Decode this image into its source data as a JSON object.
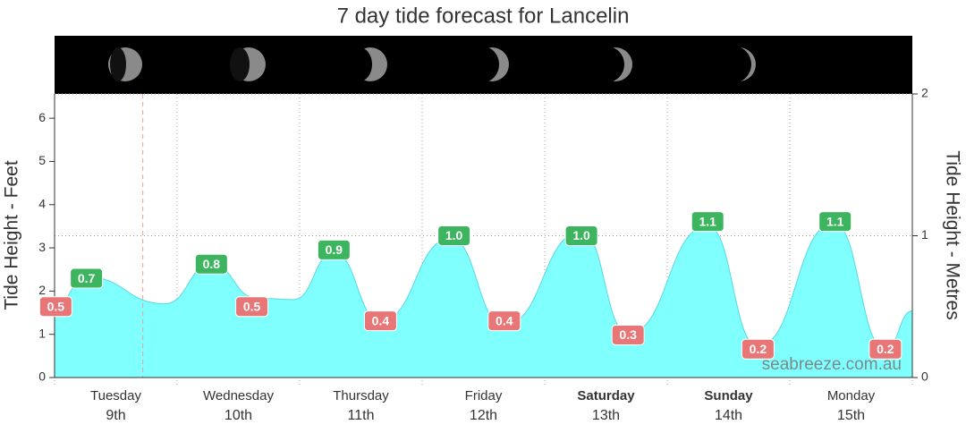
{
  "chart_data": {
    "type": "area",
    "title": "7 day tide forecast for Lancelin",
    "ylabel": "Tide Height - Feet",
    "y2label": "Tide Height - Metres",
    "ylim": [
      0,
      6.5617
    ],
    "yticks": [
      0,
      1,
      2,
      3,
      4,
      5,
      6
    ],
    "y2lim": [
      0,
      2
    ],
    "y2ticks": [
      0,
      1,
      2
    ],
    "y2grid": true,
    "xlim": [
      0,
      7
    ],
    "xticks": [
      0,
      1,
      2,
      3,
      4,
      5,
      6,
      7
    ],
    "categories": [
      "Tuesday",
      "Wednesday",
      "Thursday",
      "Friday",
      "Saturday",
      "Sunday",
      "Monday"
    ],
    "dates": [
      "9th",
      "10th",
      "11th",
      "12th",
      "13th",
      "14th",
      "15th"
    ],
    "bold": [
      false,
      false,
      false,
      false,
      true,
      true,
      false
    ],
    "series": [
      {
        "color": "#80ffff",
        "axis": "y2",
        "x": [
          0,
          0.26,
          0.9,
          1.28,
          1.65,
          1.95,
          2.28,
          2.66,
          3.23,
          3.67,
          4.3,
          4.68,
          5.33,
          5.74,
          6.36,
          6.78,
          7
        ],
        "values": [
          0.5,
          0.71,
          0.52,
          0.8,
          0.56,
          0.55,
          0.88,
          0.4,
          0.98,
          0.37,
          1.03,
          0.31,
          1.07,
          0.22,
          1.09,
          0.2,
          0.47
        ]
      }
    ],
    "highs": {
      "color": "#3cb55e",
      "x": [
        0.26,
        1.28,
        2.28,
        3.26,
        4.3,
        5.33,
        6.37
      ],
      "values": [
        0.7,
        0.8,
        0.9,
        1,
        1,
        1.1,
        1.1
      ],
      "value_labels": [
        "0.7",
        "0.8",
        "0.9",
        "1.0",
        "1.0",
        "1.1",
        "1.1"
      ]
    },
    "lows": {
      "color": "#e87676",
      "x": [
        0.01,
        1.61,
        2.66,
        3.67,
        4.68,
        5.74,
        6.78
      ],
      "values": [
        0.5,
        0.5,
        0.4,
        0.4,
        0.3,
        0.2,
        0.2
      ],
      "value_labels": [
        "0.5",
        "0.5",
        "0.4",
        "0.4",
        "0.3",
        "0.2",
        "0.2"
      ]
    },
    "now_x": 0.72,
    "now_color": "#f0a090",
    "watermark": "seabreeze.com.au"
  }
}
